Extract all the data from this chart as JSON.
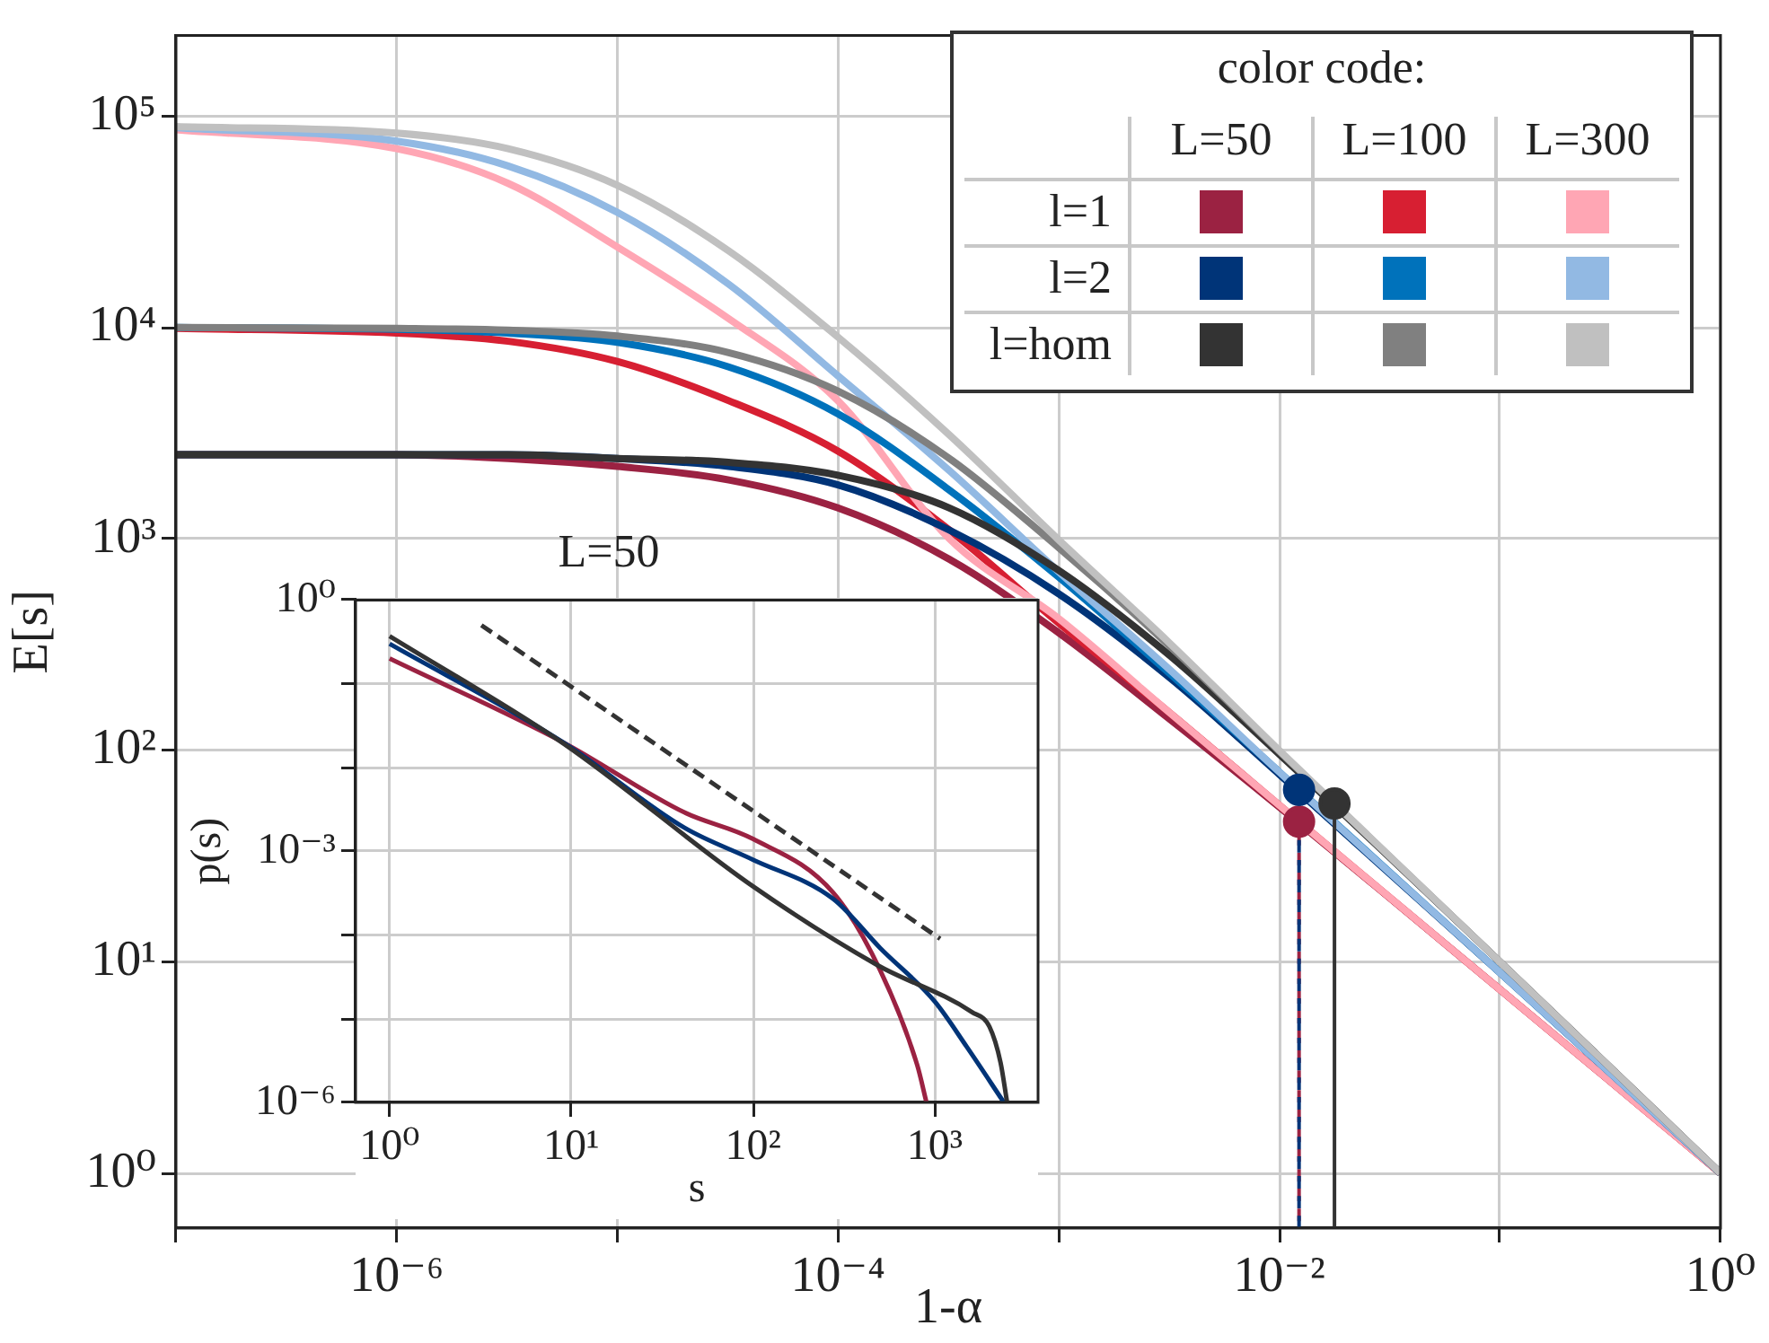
{
  "chart_data": [
    {
      "type": "line",
      "xlabel": "1-α",
      "ylabel": "E[s]",
      "log": "xy",
      "grid": true,
      "legend_title": "color code:",
      "annotations": [
        "L=50",
        "L=100",
        "L=300",
        "l=1",
        "l=2",
        "l=hom"
      ],
      "xlim": [
        1e-07,
        1
      ],
      "ylim": [
        0.55,
        240000
      ],
      "xticks": [
        {
          "value": 1e-07,
          "label": null
        },
        {
          "value": 1e-06,
          "label": "10⁻⁶"
        },
        {
          "value": 1e-05,
          "label": null
        },
        {
          "value": 0.0001,
          "label": "10⁻⁴"
        },
        {
          "value": 0.001,
          "label": null
        },
        {
          "value": 0.01,
          "label": "10⁻²"
        },
        {
          "value": 0.1,
          "label": null
        },
        {
          "value": 1,
          "label": "10⁰"
        }
      ],
      "yticks": [
        {
          "value": 1,
          "label": "10⁰"
        },
        {
          "value": 10,
          "label": "10¹"
        },
        {
          "value": 100,
          "label": "10²"
        },
        {
          "value": 1000,
          "label": "10³"
        },
        {
          "value": 10000,
          "label": "10⁴"
        },
        {
          "value": 100000,
          "label": "10⁵"
        }
      ],
      "x": [
        1e-07,
        1e-06,
        3.2e-06,
        1e-05,
        3.2e-05,
        0.0001,
        0.00032,
        0.001,
        0.0032,
        0.01,
        0.1,
        1
      ],
      "series": [
        {
          "color": "#9b2242",
          "values": [
            2500,
            2500,
            2400,
            2200,
            1900,
            1400,
            800,
            360,
            140,
            54,
            7.4,
            1
          ]
        },
        {
          "color": "#d71f32",
          "values": [
            9900,
            9400,
            8600,
            6900,
            4500,
            2600,
            1100,
            400,
            150,
            55,
            7.4,
            1
          ]
        },
        {
          "color": "#ffa6b4",
          "values": [
            86000,
            70000,
            48000,
            24000,
            11000,
            4500,
            1000,
            420,
            150,
            55,
            7.4,
            1
          ]
        },
        {
          "color": "#003478",
          "values": [
            2500,
            2500,
            2500,
            2400,
            2200,
            1800,
            1100,
            550,
            220,
            77,
            8.9,
            1
          ]
        },
        {
          "color": "#0072bb",
          "values": [
            10000,
            9800,
            9400,
            8500,
            6500,
            3900,
            1700,
            660,
            230,
            79,
            8.9,
            1
          ]
        },
        {
          "color": "#92b9e3",
          "values": [
            88000,
            76000,
            58000,
            35000,
            16000,
            5900,
            2100,
            700,
            240,
            79,
            8.9,
            1
          ]
        },
        {
          "color": "#333333",
          "values": [
            2500,
            2500,
            2500,
            2400,
            2300,
            2000,
            1400,
            710,
            280,
            96,
            10,
            1
          ]
        },
        {
          "color": "#808080",
          "values": [
            10000,
            9900,
            9700,
            9100,
            7600,
            5000,
            2400,
            910,
            310,
            99,
            10,
            1
          ]
        },
        {
          "color": "#c0c0c0",
          "values": [
            89000,
            83000,
            70000,
            47000,
            23000,
            9000,
            3100,
            990,
            320,
            100,
            10,
            1
          ]
        },
        {
          "type": "line",
          "line_style": "dashed",
          "color": "#9b2242",
          "x": [
            0.0123,
            0.0123
          ],
          "values": [
            0.55,
            46
          ]
        },
        {
          "type": "line",
          "line_style": "dashed",
          "color": "#003478",
          "x": [
            0.0123,
            0.0123
          ],
          "values": [
            0.55,
            65
          ]
        },
        {
          "type": "line",
          "color": "#333333",
          "x": [
            0.0178,
            0.0178
          ],
          "values": [
            0.55,
            56
          ]
        },
        {
          "type": "scatter",
          "marker": "circle",
          "color": "#9b2242",
          "x": [
            0.0123
          ],
          "values": [
            46
          ]
        },
        {
          "type": "scatter",
          "marker": "circle",
          "color": "#003478",
          "x": [
            0.0123
          ],
          "values": [
            65
          ]
        },
        {
          "type": "scatter",
          "marker": "circle",
          "color": "#333333",
          "x": [
            0.0178
          ],
          "values": [
            56
          ]
        }
      ]
    },
    {
      "type": "line",
      "title": "L=50",
      "xlabel": "s",
      "ylabel": "p(s)",
      "log": "xy",
      "grid": true,
      "xlim": [
        0.65,
        3700
      ],
      "ylim": [
        1e-06,
        1
      ],
      "xticks": [
        {
          "value": 1,
          "label": "10⁰"
        },
        {
          "value": 10,
          "label": "10¹"
        },
        {
          "value": 100,
          "label": "10²"
        },
        {
          "value": 1000,
          "label": "10³"
        }
      ],
      "yticks": [
        {
          "value": 1e-06,
          "label": "10⁻⁶"
        },
        {
          "value": 1e-05,
          "label": null
        },
        {
          "value": 0.0001,
          "label": null
        },
        {
          "value": 0.001,
          "label": "10⁻³"
        },
        {
          "value": 0.01,
          "label": null
        },
        {
          "value": 0.1,
          "label": null
        },
        {
          "value": 1,
          "label": "10⁰"
        }
      ],
      "series": [
        {
          "color": "#9b2242",
          "x": [
            1,
            9,
            42,
            100,
            276,
            500,
            800,
            900
          ],
          "values": [
            0.2,
            0.02,
            0.0029,
            0.0014,
            0.00032,
            3.8e-05,
            2.8e-06,
            1e-06
          ]
        },
        {
          "color": "#003478",
          "x": [
            1,
            9,
            42,
            100,
            276,
            500,
            1000,
            1500,
            2400
          ],
          "values": [
            0.3,
            0.02,
            0.0019,
            0.00079,
            0.00027,
            7e-05,
            1.6e-05,
            4.6e-06,
            1e-06
          ]
        },
        {
          "color": "#333333",
          "x": [
            1,
            9,
            100,
            480,
            1600,
            2000,
            2300,
            2500
          ],
          "values": [
            0.37,
            0.0195,
            0.00038,
            4.4e-05,
            1.2e-05,
            8e-06,
            3e-06,
            1e-06
          ]
        },
        {
          "color": "#333333",
          "line_style": "dashed",
          "x": [
            3.2,
            1070
          ],
          "values": [
            0.5,
            9e-05
          ]
        }
      ]
    }
  ]
}
